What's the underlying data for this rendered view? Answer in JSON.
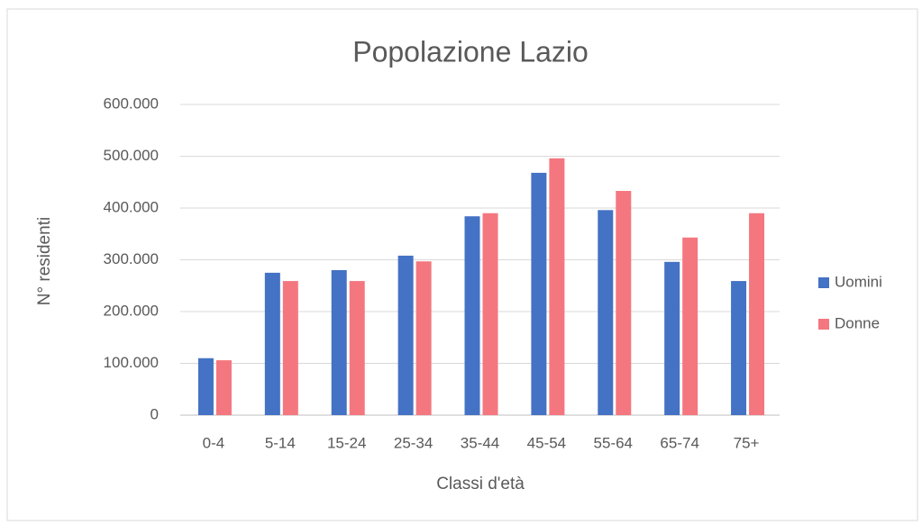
{
  "chart_data": {
    "type": "bar",
    "title": "Popolazione Lazio",
    "x_label": "Classi d'età",
    "y_label": "N° residenti",
    "categories": [
      "0-4",
      "5-14",
      "15-24",
      "25-34",
      "35-44",
      "45-54",
      "55-64",
      "65-74",
      "75+"
    ],
    "series": [
      {
        "name": "Uomini",
        "color": "#4472c4",
        "values": [
          110000,
          275000,
          280000,
          308000,
          384000,
          468000,
          396000,
          296000,
          259000
        ]
      },
      {
        "name": "Donne",
        "color": "#f4777f",
        "values": [
          106000,
          259000,
          259000,
          297000,
          390000,
          496000,
          433000,
          343000,
          390000
        ]
      }
    ],
    "ylim": [
      0,
      600000
    ],
    "yticks": [
      0,
      {
        "value": 100000,
        "label": "100.000"
      },
      {
        "value": 200000,
        "label": "200.000"
      },
      {
        "value": 300000,
        "label": "300.000"
      },
      {
        "value": 400000,
        "label": "400.000"
      },
      {
        "value": 500000,
        "label": "500.000"
      },
      {
        "value": 600000,
        "label": "600.000"
      }
    ],
    "grid": true,
    "legend": "right"
  }
}
